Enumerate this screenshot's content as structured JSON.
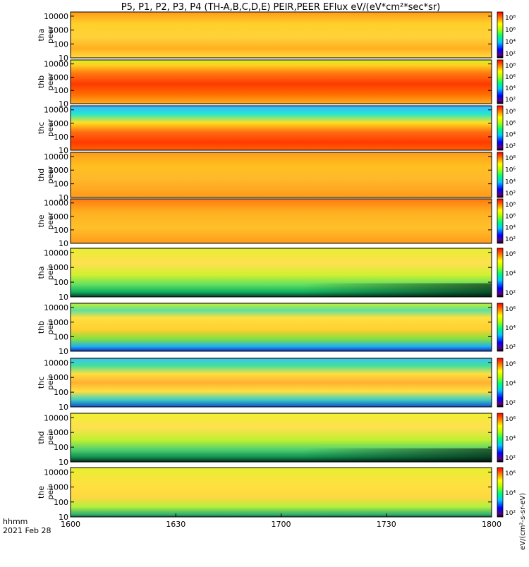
{
  "chart_data": {
    "type": "heatmap",
    "title": "P5, P1, P2, P3, P4 (TH-A,B,C,D,E) PEIR,PEER EFlux eV/(eV*cm²*sec*sr)",
    "x_label_line1": "hhmm",
    "x_label_line2": "2021 Feb 28",
    "x_ticks": [
      "1600",
      "1630",
      "1700",
      "1730",
      "1800"
    ],
    "xlim": [
      "1600",
      "1800"
    ],
    "y_scale": "log",
    "ylim": [
      10,
      20000
    ],
    "y_ticks": [
      "10",
      "100",
      "1000",
      "10000"
    ],
    "colorbar_scale": "log",
    "colorbar_label": "eV/(cm²-s-sr-eV)",
    "colorbar_ticks_per_panel": [
      [
        "10²",
        "10⁴",
        "10⁶",
        "10⁸"
      ],
      [
        "10²",
        "10⁴",
        "10⁶",
        "10⁸"
      ],
      [
        "10²",
        "10⁴",
        "10⁶",
        "10⁸"
      ],
      [
        "10²",
        "10⁴",
        "10⁶",
        "10⁸"
      ],
      [
        "10²",
        "10⁴",
        "10⁶",
        "10⁸"
      ],
      [
        "10²",
        "10⁴",
        "10⁶"
      ],
      [
        "10²",
        "10⁴",
        "10⁶"
      ],
      [
        "10²",
        "10⁴",
        "10⁶"
      ],
      [
        "10²",
        "10⁴",
        "10⁶"
      ],
      [
        "10²",
        "10⁴",
        "10⁶"
      ]
    ],
    "panels": [
      {
        "probe": "tha",
        "species": "peer"
      },
      {
        "probe": "thb",
        "species": "peer"
      },
      {
        "probe": "thc",
        "species": "peer"
      },
      {
        "probe": "thd",
        "species": "peer"
      },
      {
        "probe": "the",
        "species": "peer"
      },
      {
        "probe": "tha",
        "species": "peir"
      },
      {
        "probe": "thb",
        "species": "peir"
      },
      {
        "probe": "thc",
        "species": "peir"
      },
      {
        "probe": "thd",
        "species": "peir"
      },
      {
        "probe": "the",
        "species": "peir"
      }
    ]
  }
}
